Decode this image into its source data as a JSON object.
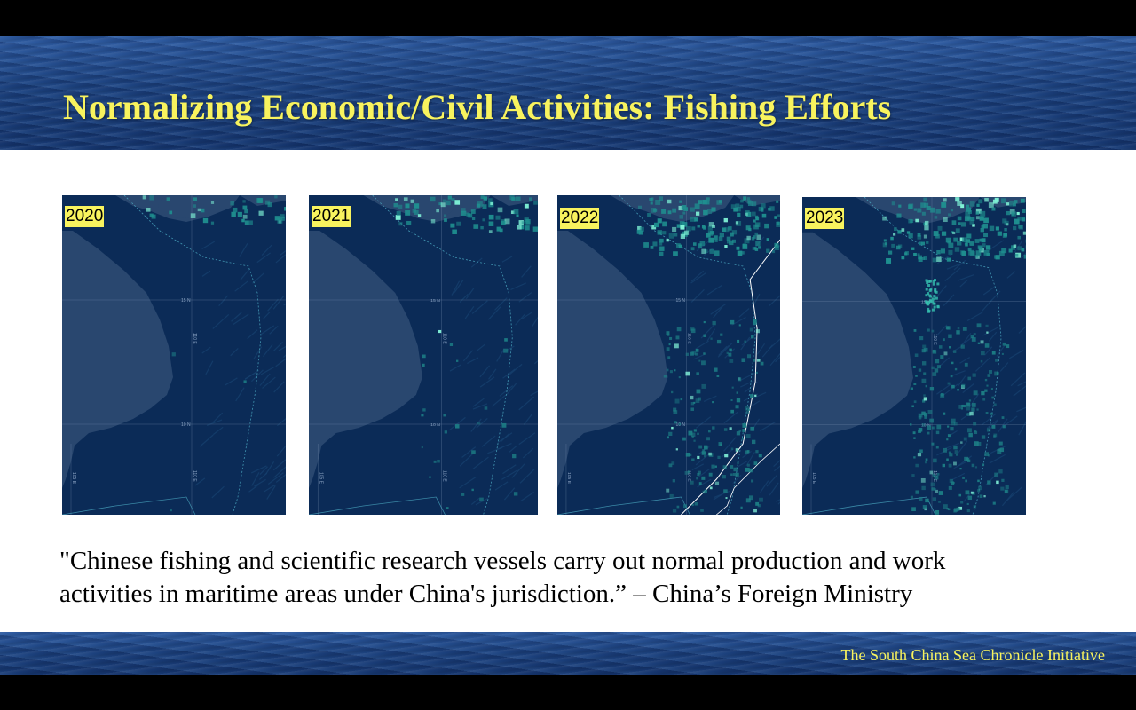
{
  "slide": {
    "title": "Normalizing Economic/Civil Activities: Fishing Efforts",
    "quote_line1": "\"Chinese fishing and scientific research vessels carry out normal production and work",
    "quote_line2": "activities in maritime areas under China's jurisdiction.” – China’s Foreign Ministry",
    "footer": "The South China Sea Chronicle Initiative",
    "title_color": "#f8f35e",
    "label_color": "#f8f35e"
  },
  "maps": [
    {
      "year": "2020",
      "intensity": 0.08
    },
    {
      "year": "2021",
      "intensity": 0.25
    },
    {
      "year": "2022",
      "intensity": 0.65
    },
    {
      "year": "2023",
      "intensity": 0.75
    }
  ],
  "map_axis": {
    "lat_15": "15 N",
    "lat_10": "10 N",
    "lon_110": "110 E",
    "lon_105": "105 E"
  }
}
